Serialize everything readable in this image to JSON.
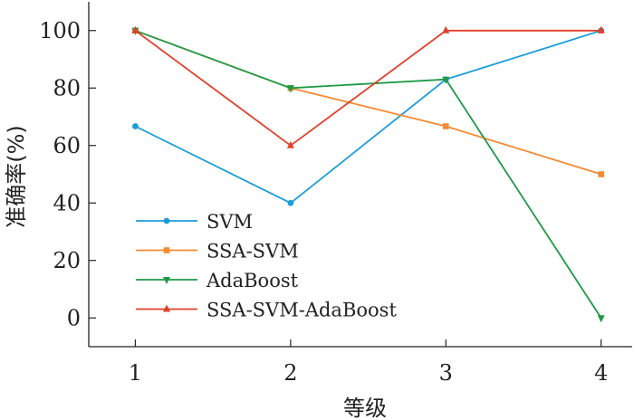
{
  "chart_data": {
    "type": "line",
    "x": [
      1,
      2,
      3,
      4
    ],
    "xlabel": "等级",
    "ylabel": "准确率(%)",
    "xlim": [
      0.7,
      4.2
    ],
    "ylim": [
      -10,
      110
    ],
    "xticks": [
      1,
      2,
      3,
      4
    ],
    "yticks": [
      0,
      20,
      40,
      60,
      80,
      100
    ],
    "grid": false,
    "legend_position": "bottom-left",
    "series": [
      {
        "name": "SVM",
        "values": [
          66.7,
          40,
          83,
          100
        ],
        "color": "#1b9dd9",
        "marker": "circle"
      },
      {
        "name": "SSA-SVM",
        "values": [
          100,
          80,
          66.7,
          50
        ],
        "color": "#f58a34",
        "marker": "square"
      },
      {
        "name": "AdaBoost",
        "values": [
          100,
          80,
          83,
          0
        ],
        "color": "#1f9a46",
        "marker": "triangle-down"
      },
      {
        "name": "SSA-SVM-AdaBoost",
        "values": [
          100,
          60,
          100,
          100
        ],
        "color": "#e0402a",
        "marker": "triangle-up"
      }
    ]
  }
}
